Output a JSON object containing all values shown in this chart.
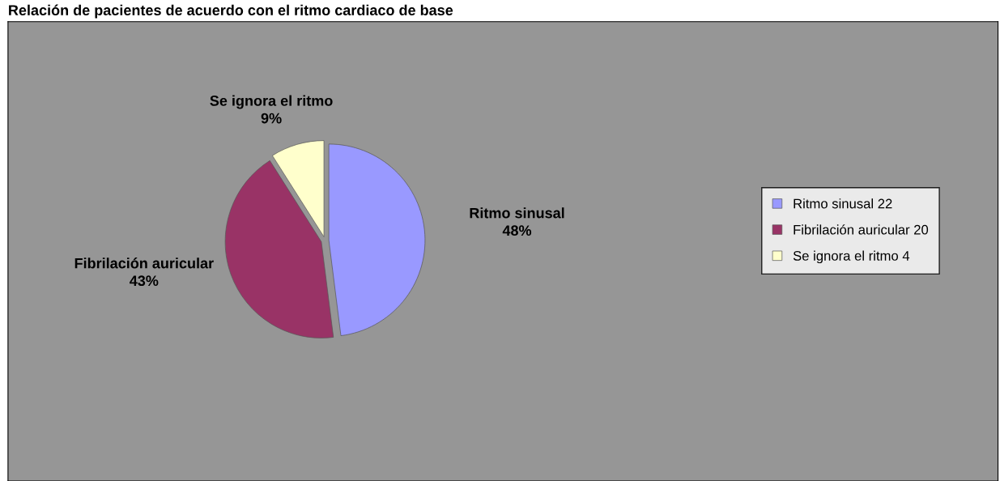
{
  "chart_data": {
    "type": "pie",
    "title": "Relación de pacientes de acuerdo con el ritmo cardiaco de base",
    "categories": [
      "Ritmo sinusal 22",
      "Fibrilación auricular 20",
      "Se ignora el ritmo 4"
    ],
    "values": [
      48,
      43,
      9
    ],
    "value_labels": [
      "48%",
      "43%",
      "9%"
    ],
    "annotations": [
      "Ritmo sinusal",
      "Fibrilación auricular",
      "Se ignora el ritmo"
    ],
    "colors": [
      "#9999ff",
      "#993366",
      "#ffffcc"
    ],
    "legend": "right"
  }
}
